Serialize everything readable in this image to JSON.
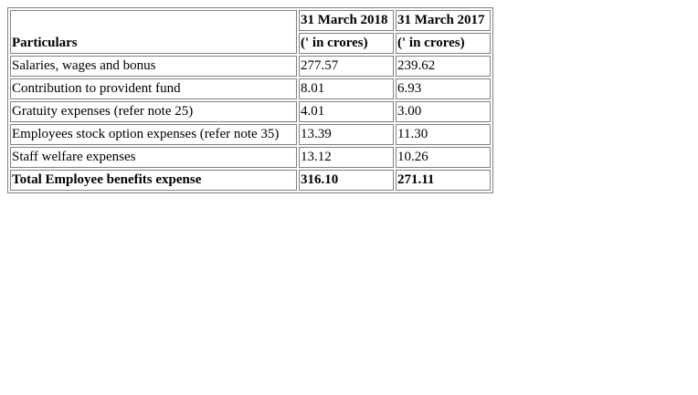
{
  "table": {
    "header": {
      "particulars": "Particulars",
      "year1": "31 March 2018",
      "year2": "31 March 2017",
      "unit1": "(' in crores)",
      "unit2": "(' in crores)"
    },
    "rows": [
      {
        "label": "Salaries, wages and bonus",
        "v1": "277.57",
        "v2": "239.62"
      },
      {
        "label": "Contribution to provident fund",
        "v1": "8.01",
        "v2": "6.93"
      },
      {
        "label": "Gratuity expenses (refer note 25)",
        "v1": "4.01",
        "v2": "3.00"
      },
      {
        "label": "Employees stock option expenses (refer note 35)",
        "v1": "13.39",
        "v2": "11.30"
      },
      {
        "label": "Staff welfare expenses",
        "v1": "13.12",
        "v2": "10.26"
      }
    ],
    "total": {
      "label": "Total Employee benefits expense",
      "v1": "316.10",
      "v2": "271.11"
    }
  }
}
